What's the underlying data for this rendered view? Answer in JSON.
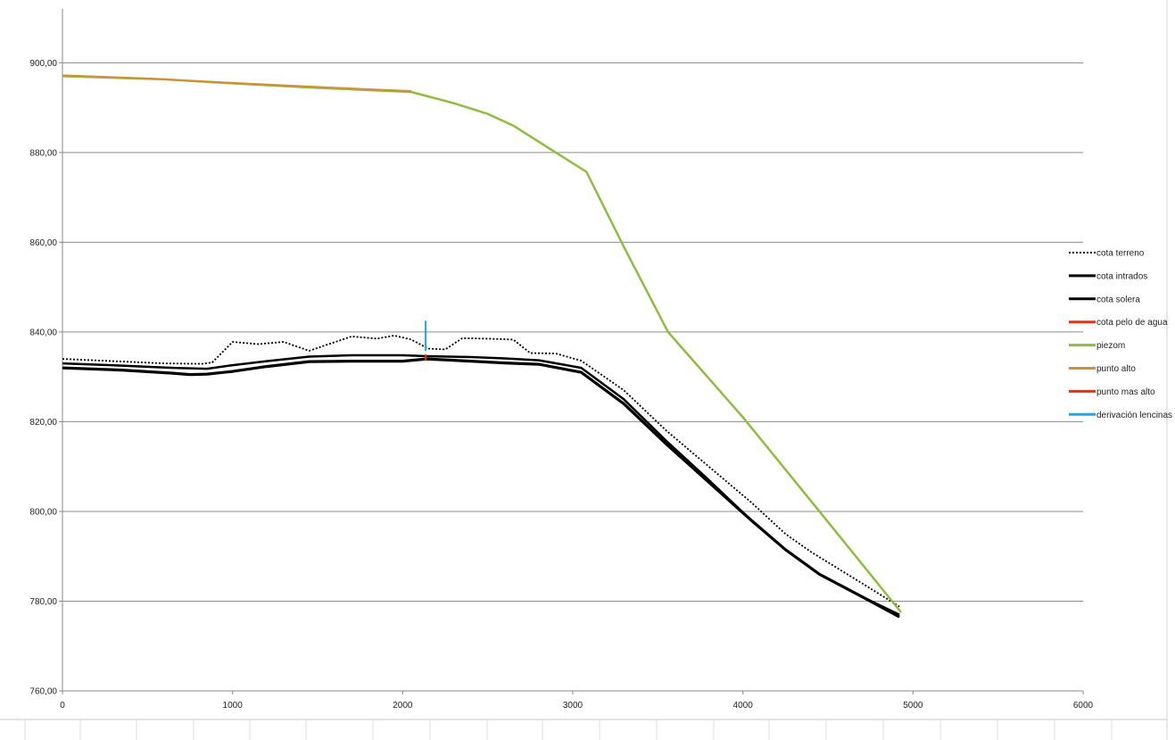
{
  "chart_data": {
    "type": "line",
    "title": "",
    "xlabel": "",
    "ylabel": "",
    "xlim": [
      0,
      6000
    ],
    "ylim": [
      760,
      912
    ],
    "x_ticks": [
      0,
      1000,
      2000,
      3000,
      4000,
      5000,
      6000
    ],
    "x_tick_labels": [
      "0",
      "1000",
      "2000",
      "3000",
      "4000",
      "5000",
      "6000"
    ],
    "y_ticks": [
      760,
      780,
      800,
      820,
      840,
      860,
      880,
      900
    ],
    "y_tick_labels": [
      "760,00",
      "780,00",
      "800,00",
      "820,00",
      "840,00",
      "860,00",
      "880,00",
      "900,00"
    ],
    "grid": "horizontal",
    "legend_position": "right",
    "series": [
      {
        "name": "cota terreno",
        "color": "#000000",
        "style": "dotted",
        "width": 1.8,
        "points": [
          [
            0,
            834
          ],
          [
            300,
            833.5
          ],
          [
            600,
            833
          ],
          [
            820,
            832.9
          ],
          [
            880,
            833.2
          ],
          [
            1000,
            837.8
          ],
          [
            1150,
            837.3
          ],
          [
            1300,
            837.8
          ],
          [
            1450,
            835.8
          ],
          [
            1700,
            839
          ],
          [
            1850,
            838.5
          ],
          [
            1950,
            839.2
          ],
          [
            2050,
            838.3
          ],
          [
            2150,
            836.3
          ],
          [
            2250,
            836.1
          ],
          [
            2350,
            838.6
          ],
          [
            2500,
            838.5
          ],
          [
            2650,
            838.3
          ],
          [
            2750,
            835.3
          ],
          [
            2900,
            835.2
          ],
          [
            3050,
            833.6
          ],
          [
            3300,
            827
          ],
          [
            3550,
            818
          ],
          [
            3800,
            810
          ],
          [
            4050,
            802
          ],
          [
            4250,
            795
          ],
          [
            4400,
            791
          ],
          [
            4700,
            784
          ],
          [
            4920,
            778.8
          ]
        ]
      },
      {
        "name": "cota intrados",
        "color": "#000000",
        "style": "solid",
        "width": 2.5,
        "points": [
          [
            0,
            833
          ],
          [
            350,
            832.5
          ],
          [
            650,
            832
          ],
          [
            850,
            831.8
          ],
          [
            1000,
            832.6
          ],
          [
            1200,
            833.5
          ],
          [
            1450,
            834.5
          ],
          [
            1700,
            834.8
          ],
          [
            2000,
            834.8
          ],
          [
            2140,
            834.6
          ],
          [
            2400,
            834.4
          ],
          [
            2600,
            834.1
          ],
          [
            2800,
            833.7
          ],
          [
            3050,
            832
          ],
          [
            3300,
            825
          ],
          [
            3550,
            815.7
          ],
          [
            3800,
            807
          ],
          [
            4050,
            798
          ],
          [
            4250,
            791.5
          ],
          [
            4450,
            786
          ],
          [
            4700,
            781
          ],
          [
            4920,
            777
          ]
        ]
      },
      {
        "name": "cota solera",
        "color": "#000000",
        "style": "solid",
        "width": 3.2,
        "points": [
          [
            0,
            832
          ],
          [
            350,
            831.5
          ],
          [
            650,
            830.8
          ],
          [
            750,
            830.5
          ],
          [
            850,
            830.6
          ],
          [
            1000,
            831.2
          ],
          [
            1200,
            832.3
          ],
          [
            1450,
            833.4
          ],
          [
            1700,
            833.5
          ],
          [
            2000,
            833.5
          ],
          [
            2140,
            834
          ],
          [
            2400,
            833.5
          ],
          [
            2600,
            833.1
          ],
          [
            2800,
            832.8
          ],
          [
            3050,
            831
          ],
          [
            3300,
            824
          ],
          [
            3550,
            815
          ],
          [
            3800,
            806.5
          ],
          [
            4050,
            798
          ],
          [
            4250,
            791.5
          ],
          [
            4450,
            786
          ],
          [
            4700,
            781
          ],
          [
            4920,
            776.5
          ]
        ]
      },
      {
        "name": "cota pelo de agua",
        "color": "#ff2a00",
        "style": "solid",
        "width": 2,
        "points": []
      },
      {
        "name": "piezom",
        "color": "#8fbc3f",
        "style": "solid",
        "width": 2.5,
        "points": [
          [
            0,
            897
          ],
          [
            600,
            896.3
          ],
          [
            1000,
            895.4
          ],
          [
            1400,
            894.6
          ],
          [
            1800,
            893.9
          ],
          [
            2050,
            893.5
          ],
          [
            2300,
            891
          ],
          [
            2500,
            888.6
          ],
          [
            2650,
            886
          ],
          [
            2900,
            880
          ],
          [
            3080,
            875.7
          ],
          [
            3300,
            859
          ],
          [
            3560,
            840
          ],
          [
            4000,
            821
          ],
          [
            4450,
            800
          ],
          [
            4930,
            777.5
          ]
        ]
      },
      {
        "name": "punto alto",
        "color": "#d38b3c",
        "style": "solid",
        "width": 2,
        "points": [
          [
            0,
            897.2
          ],
          [
            500,
            896.5
          ],
          [
            1000,
            895.5
          ],
          [
            1400,
            894.8
          ],
          [
            1800,
            894.1
          ],
          [
            2050,
            893.7
          ]
        ]
      },
      {
        "name": "punto mas alto",
        "color": "#ff2a00",
        "style": "solid",
        "width": 2,
        "points": [
          [
            2135,
            833.6
          ],
          [
            2135,
            835
          ]
        ]
      },
      {
        "name": "derivación lencinas",
        "color": "#1fa8e0",
        "style": "solid",
        "width": 2,
        "points": [
          [
            2135,
            835.8
          ],
          [
            2135,
            842.5
          ]
        ]
      }
    ]
  }
}
